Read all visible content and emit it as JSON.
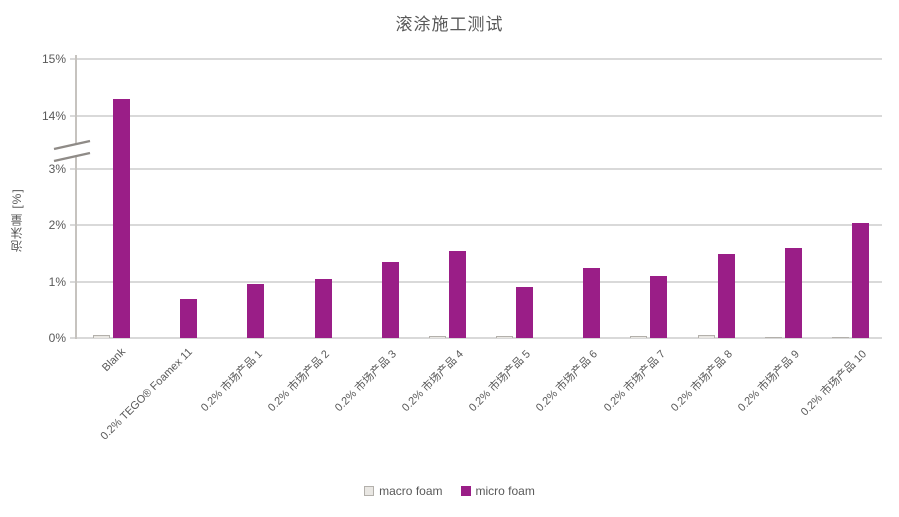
{
  "page": {
    "background": "#ffffff"
  },
  "chart_data": {
    "type": "bar",
    "title": "滚涂施工测试",
    "ylabel": "泡沫量 [%]",
    "xlabel": "",
    "categories": [
      "Blank",
      "0.2% TEGO® Foamex 11",
      "0.2% 市场产品 1",
      "0.2% 市场产品 2",
      "0.2% 市场产品 3",
      "0.2% 市场产品 4",
      "0.2% 市场产品 5",
      "0.2% 市场产品 6",
      "0.2% 市场产品 7",
      "0.2% 市场产品 8",
      "0.2% 市场产品 9",
      "0.2% 市场产品 10"
    ],
    "series": [
      {
        "name": "macro foam",
        "color": "#e9e7e3",
        "border_color": "#b3b0ab",
        "values": [
          0.05,
          0.005,
          0.005,
          0.005,
          0.01,
          0.03,
          0.03,
          0.01,
          0.04,
          0.06,
          0.02,
          0.02
        ]
      },
      {
        "name": "micro foam",
        "color": "#9a1e87",
        "values": [
          14.3,
          0.7,
          0.95,
          1.05,
          1.35,
          1.55,
          0.9,
          1.25,
          1.1,
          1.5,
          1.6,
          2.05
        ]
      }
    ],
    "y_ticks": [
      "0%",
      "1%",
      "2%",
      "3%",
      "14%",
      "15%"
    ],
    "y_tick_values": [
      0,
      1,
      2,
      3,
      14,
      15
    ],
    "axis_break": {
      "enabled": true,
      "lower_max": 3,
      "upper_min": 14
    },
    "grid": true,
    "legend_position": "bottom",
    "colors": {
      "grid": "#d9d9d9",
      "axis": "#c6c3bf",
      "text": "#595959",
      "break_stroke": "#8f8b87"
    }
  }
}
